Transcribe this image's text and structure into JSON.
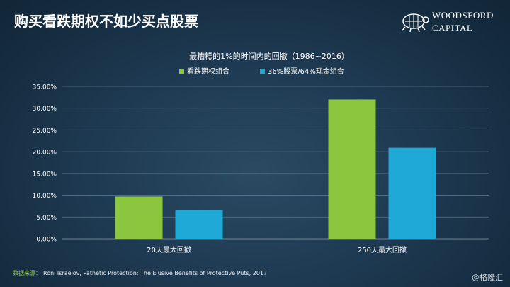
{
  "slide": {
    "title": "购买看跌期权不如少买点股票",
    "logo_line1": "WOODSFORD",
    "logo_line2": "CAPITAL",
    "source_label": "数据来源：",
    "source_text": "Roni Israelov, Pathetic Protection: The Elusive Benefits of Protective Puts, 2017",
    "watermark": "@格隆汇"
  },
  "colors": {
    "series1": "#8cc63f",
    "series2": "#1fa9d6",
    "grid": "#5d7385",
    "text": "#ffffff"
  },
  "chart_data": {
    "type": "bar",
    "title": "最糟糕的1%的时间内的回撤（1986~2016）",
    "categories": [
      "20天最大回撤",
      "250天最大回撤"
    ],
    "series": [
      {
        "name": "看跌期权组合",
        "values": [
          9.7,
          32.0
        ]
      },
      {
        "name": "36%股票/64%现金组合",
        "values": [
          6.6,
          20.9
        ]
      }
    ],
    "ylim": [
      0,
      35
    ],
    "yticks": [
      "0.00%",
      "5.00%",
      "10.00%",
      "15.00%",
      "20.00%",
      "25.00%",
      "30.00%",
      "35.00%"
    ],
    "ytick_values": [
      0,
      5,
      10,
      15,
      20,
      25,
      30,
      35
    ],
    "grid": true,
    "legend_position": "top-center",
    "xlabel": "",
    "ylabel": ""
  }
}
